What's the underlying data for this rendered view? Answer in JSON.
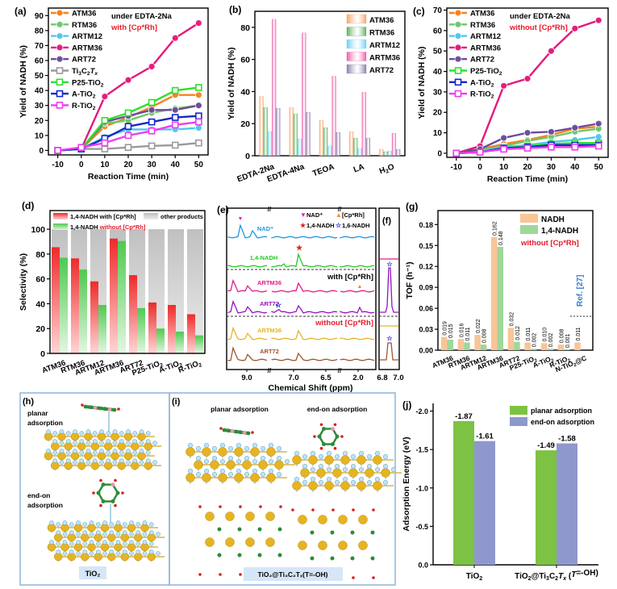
{
  "chart_data": [
    {
      "panel": "(a)",
      "type": "line",
      "ylabel": "Yield of NADH (%)",
      "xlabel": "Reaction Time (min)",
      "x": [
        -10,
        0,
        10,
        20,
        30,
        40,
        50
      ],
      "xticks": [
        "-10",
        "0",
        "10",
        "20",
        "30",
        "40",
        "50"
      ],
      "yticks": [
        "0",
        "10",
        "20",
        "30",
        "40",
        "50",
        "60",
        "70",
        "80",
        "90"
      ],
      "ylim": [
        -3,
        95
      ],
      "annotation": [
        "under EDTA-2Na",
        "with [Cp*Rh]"
      ],
      "legend": "top-left",
      "series": [
        {
          "name": "ATM36",
          "color": "#f5821f",
          "marker": "circle",
          "values": [
            0,
            1,
            16,
            22,
            29,
            37,
            37
          ]
        },
        {
          "name": "RTM36",
          "color": "#6cc86a",
          "marker": "circle",
          "values": [
            0,
            1,
            18,
            20,
            25,
            28,
            30
          ]
        },
        {
          "name": "ARTM12",
          "color": "#4fc6f0",
          "marker": "circle",
          "values": [
            0,
            1,
            9,
            14,
            14,
            14,
            15
          ]
        },
        {
          "name": "ARTM36",
          "color": "#e5197a",
          "marker": "circle",
          "values": [
            0,
            1,
            36,
            47,
            56,
            75,
            85
          ]
        },
        {
          "name": "ART72",
          "color": "#6b4c9a",
          "marker": "circle",
          "values": [
            0,
            1,
            19,
            23,
            27,
            27,
            30
          ]
        },
        {
          "name": "Ti3C2Tx",
          "label_parts": [
            "Ti",
            "3",
            "C",
            "2",
            "T",
            "x"
          ],
          "color": "#9a9a9a",
          "marker": "square",
          "values": [
            0,
            1,
            1,
            2,
            3,
            3.5,
            5
          ]
        },
        {
          "name": "P25-TiO2",
          "label_parts": [
            "P25-TiO",
            "2"
          ],
          "color": "#2ee02e",
          "marker": "square",
          "values": [
            0,
            1,
            20,
            25,
            32,
            40,
            42
          ]
        },
        {
          "name": "A-TiO2",
          "label_parts": [
            "A-TiO",
            "2"
          ],
          "color": "#1428c8",
          "marker": "square",
          "values": [
            0,
            1,
            8,
            16,
            19,
            22,
            23
          ]
        },
        {
          "name": "R-TiO2",
          "label_parts": [
            "R-TiO",
            "2"
          ],
          "color": "#f03cf0",
          "marker": "square",
          "values": [
            0,
            2,
            5,
            10,
            13,
            17,
            19
          ]
        }
      ]
    },
    {
      "panel": "(b)",
      "type": "bar",
      "ylabel": "Yield of NADH (%)",
      "categories": [
        "EDTA-2Na",
        "EDTA-4Na",
        "TEOA",
        "LA",
        "H2O"
      ],
      "yticks": [
        "0",
        "20",
        "40",
        "60",
        "80"
      ],
      "ylim": [
        0,
        90
      ],
      "legend": "top-right",
      "series": [
        {
          "name": "ATM36",
          "color": "#f5a36a",
          "values": [
            37,
            30,
            22,
            15,
            4
          ]
        },
        {
          "name": "RTM36",
          "color": "#5fb05f",
          "values": [
            30,
            26,
            17.5,
            11,
            2.5
          ]
        },
        {
          "name": "ARTM12",
          "color": "#6fd0f5",
          "values": [
            15,
            10.5,
            6,
            4.5,
            3
          ]
        },
        {
          "name": "ARTM36",
          "color": "#ef5ea8",
          "values": [
            85,
            76.5,
            49.5,
            39.5,
            14
          ]
        },
        {
          "name": "ART72",
          "color": "#8a7fb0",
          "values": [
            29.5,
            27,
            14.5,
            11,
            4
          ]
        }
      ]
    },
    {
      "panel": "(c)",
      "type": "line",
      "ylabel": "Yield of NADH (%)",
      "xlabel": "Reaction Time (min)",
      "x": [
        -10,
        0,
        10,
        20,
        30,
        40,
        50
      ],
      "xticks": [
        "-10",
        "0",
        "10",
        "20",
        "30",
        "40",
        "50"
      ],
      "yticks": [
        "0",
        "10",
        "20",
        "30",
        "40",
        "50",
        "60",
        "70"
      ],
      "ylim": [
        -2,
        71
      ],
      "annotation": [
        "under EDTA-2Na",
        "without [Cp*Rh]"
      ],
      "legend": "top-left",
      "series": [
        {
          "name": "ATM36",
          "color": "#f5821f",
          "marker": "circle",
          "values": [
            0,
            2,
            4.5,
            6.5,
            9,
            12,
            13
          ]
        },
        {
          "name": "RTM36",
          "color": "#6cc86a",
          "marker": "circle",
          "values": [
            0,
            1.5,
            3.5,
            6,
            8,
            10.5,
            12
          ]
        },
        {
          "name": "ARTM12",
          "color": "#4fc6f0",
          "marker": "circle",
          "values": [
            0,
            1,
            3,
            4,
            5.5,
            6.5,
            8
          ]
        },
        {
          "name": "ARTM36",
          "color": "#e5197a",
          "marker": "circle",
          "values": [
            0,
            3.5,
            33,
            36.5,
            50,
            61,
            65
          ]
        },
        {
          "name": "ART72",
          "color": "#6b4c9a",
          "marker": "circle",
          "values": [
            0,
            2,
            7.5,
            10,
            10.5,
            12.5,
            14.5
          ]
        },
        {
          "name": "P25-TiO2",
          "label_parts": [
            "P25-TiO",
            "2"
          ],
          "color": "#2ee02e",
          "marker": "square",
          "values": [
            0,
            0.5,
            2.5,
            3.5,
            4.5,
            5,
            5
          ]
        },
        {
          "name": "A-TiO2",
          "label_parts": [
            "A-TiO",
            "2"
          ],
          "color": "#1428c8",
          "marker": "square",
          "values": [
            0,
            0.5,
            2.5,
            3,
            4,
            4,
            4
          ]
        },
        {
          "name": "R-TiO2",
          "label_parts": [
            "R-TiO",
            "2"
          ],
          "color": "#f03cf0",
          "marker": "square",
          "values": [
            0,
            0.5,
            2,
            2.5,
            3,
            3,
            3.5
          ]
        }
      ]
    },
    {
      "panel": "(d)",
      "type": "bar",
      "ylabel": "Selectivity (%)",
      "categories": [
        "ATM36",
        "RTM36",
        "ARTM12",
        "ARTM36",
        "ART72",
        "P25-TiO2",
        "A-TiO2",
        "R-TiO2"
      ],
      "yticks": [
        "0",
        "20",
        "40",
        "60",
        "80",
        "100"
      ],
      "ylim": [
        0,
        115
      ],
      "legend": "top",
      "legend_entries": [
        "1,4-NADH with [Cp*Rh]",
        "1,4-NADH without [Cp*Rh]",
        "other products"
      ],
      "series": [
        {
          "name": "1,4-NADH with [Cp*Rh]",
          "color": "#ee2a2a",
          "values": [
            85.5,
            76.5,
            58,
            92.5,
            63,
            41,
            39,
            31.5
          ]
        },
        {
          "name": "1,4-NADH without [Cp*Rh]",
          "color": "#4fc94f",
          "values": [
            77,
            67.5,
            39,
            90.5,
            36.5,
            20,
            17.5,
            14.5
          ]
        },
        {
          "name": "other products",
          "color": "#c8c8c8",
          "values": [
            100,
            100,
            100,
            100,
            100,
            100,
            100,
            100
          ]
        }
      ]
    },
    {
      "panel": "(e)",
      "type": "line",
      "xlabel": "Chemical Shift (ppm)",
      "xticks": [
        "9.0",
        "7.0",
        "6.5",
        "2.0"
      ],
      "legend_entries": [
        {
          "symbol": "▼",
          "label": "NAD⁺",
          "color": "#e619c8"
        },
        {
          "symbol": "★",
          "label": "1,4-NADH",
          "color": "#e01e1e"
        },
        {
          "symbol": "▲",
          "label": "[Cp*Rh]",
          "color": "#f08c1e"
        },
        {
          "symbol": "☆",
          "label": "1,6-NADH",
          "color": "#2828c8"
        }
      ],
      "section_labels": [
        "with [Cp*Rh]",
        "without [Cp*Rh]"
      ],
      "traces": [
        {
          "name": "NAD⁺",
          "color": "#1e96e6"
        },
        {
          "name": "1,4-NADH",
          "color": "#28c828"
        },
        {
          "name": "ARTM36",
          "color": "#e01e8c"
        },
        {
          "name": "ART72",
          "color": "#9614be"
        },
        {
          "name": "ARTM36",
          "color": "#e6b428"
        },
        {
          "name": "ART72",
          "color": "#a0552d"
        }
      ]
    },
    {
      "panel": "(f)",
      "type": "line",
      "xticks": [
        "6.8",
        "7.0"
      ]
    },
    {
      "panel": "(g)",
      "type": "bar",
      "ylabel": "TOF (h⁻¹)",
      "categories": [
        "ATM36",
        "RTM36",
        "ARTM12",
        "ARTM36",
        "ART72",
        "P25-TiO2",
        "A-TiO2",
        "R-TiO2",
        "N-TiO2@C"
      ],
      "yticks": [
        "0.00",
        "0.03",
        "0.06",
        "0.09",
        "0.12",
        "0.15",
        "0.18"
      ],
      "ylim": [
        0,
        0.2
      ],
      "legend": "top-right",
      "annotation": [
        "without [Cp*Rh]",
        "Ref. [27]"
      ],
      "series": [
        {
          "name": "NADH",
          "color": "#f8c596",
          "values": [
            0.019,
            0.016,
            0.022,
            0.162,
            0.032,
            0.011,
            0.01,
            0.008,
            0.011
          ],
          "labels": [
            "0.019",
            "0.016",
            "0.022",
            "0.162",
            "0.032",
            "0.011",
            "0.010",
            "0.008",
            "0.011"
          ]
        },
        {
          "name": "1,4-NADH",
          "color": "#9ed89a",
          "values": [
            0.015,
            0.011,
            0.008,
            0.148,
            0.012,
            0.002,
            0.002,
            0.001,
            null
          ],
          "labels": [
            "0.015",
            "0.011",
            "0.008",
            "0.148",
            "0.012",
            "0.002",
            "0.002",
            "0.001",
            ""
          ]
        }
      ]
    },
    {
      "panel": "(j)",
      "type": "bar",
      "ylabel": "Adsorption Energy (eV)",
      "categories": [
        "TiO2",
        "TiO2@Ti3C2Tx (T=-OH)"
      ],
      "yticks": [
        "0.0",
        "-0.5",
        "-1.0",
        "-1.5",
        "-2.0"
      ],
      "ylim": [
        0,
        -2.0
      ],
      "legend": "top-right",
      "series": [
        {
          "name": "planar adsorption",
          "color": "#7dc242",
          "values": [
            -1.87,
            -1.49
          ],
          "labels": [
            "-1.87",
            "-1.49"
          ]
        },
        {
          "name": "end-on adsorption",
          "color": "#8e98cc",
          "values": [
            -1.61,
            -1.58
          ],
          "labels": [
            "-1.61",
            "-1.58"
          ]
        }
      ]
    }
  ],
  "structures": {
    "h": {
      "label": "(h)",
      "planar": "planar adsorption",
      "planar_lines": [
        "planar",
        "adsorption"
      ],
      "endon_lines": [
        "end-on",
        "adsorption"
      ],
      "caption": "TiO₂"
    },
    "i": {
      "label": "(i)",
      "planar": "planar adsorption",
      "endon": "end-on adsorption",
      "caption": "TiO₂@Ti₃C₂Tₓ(T=-OH)"
    }
  }
}
